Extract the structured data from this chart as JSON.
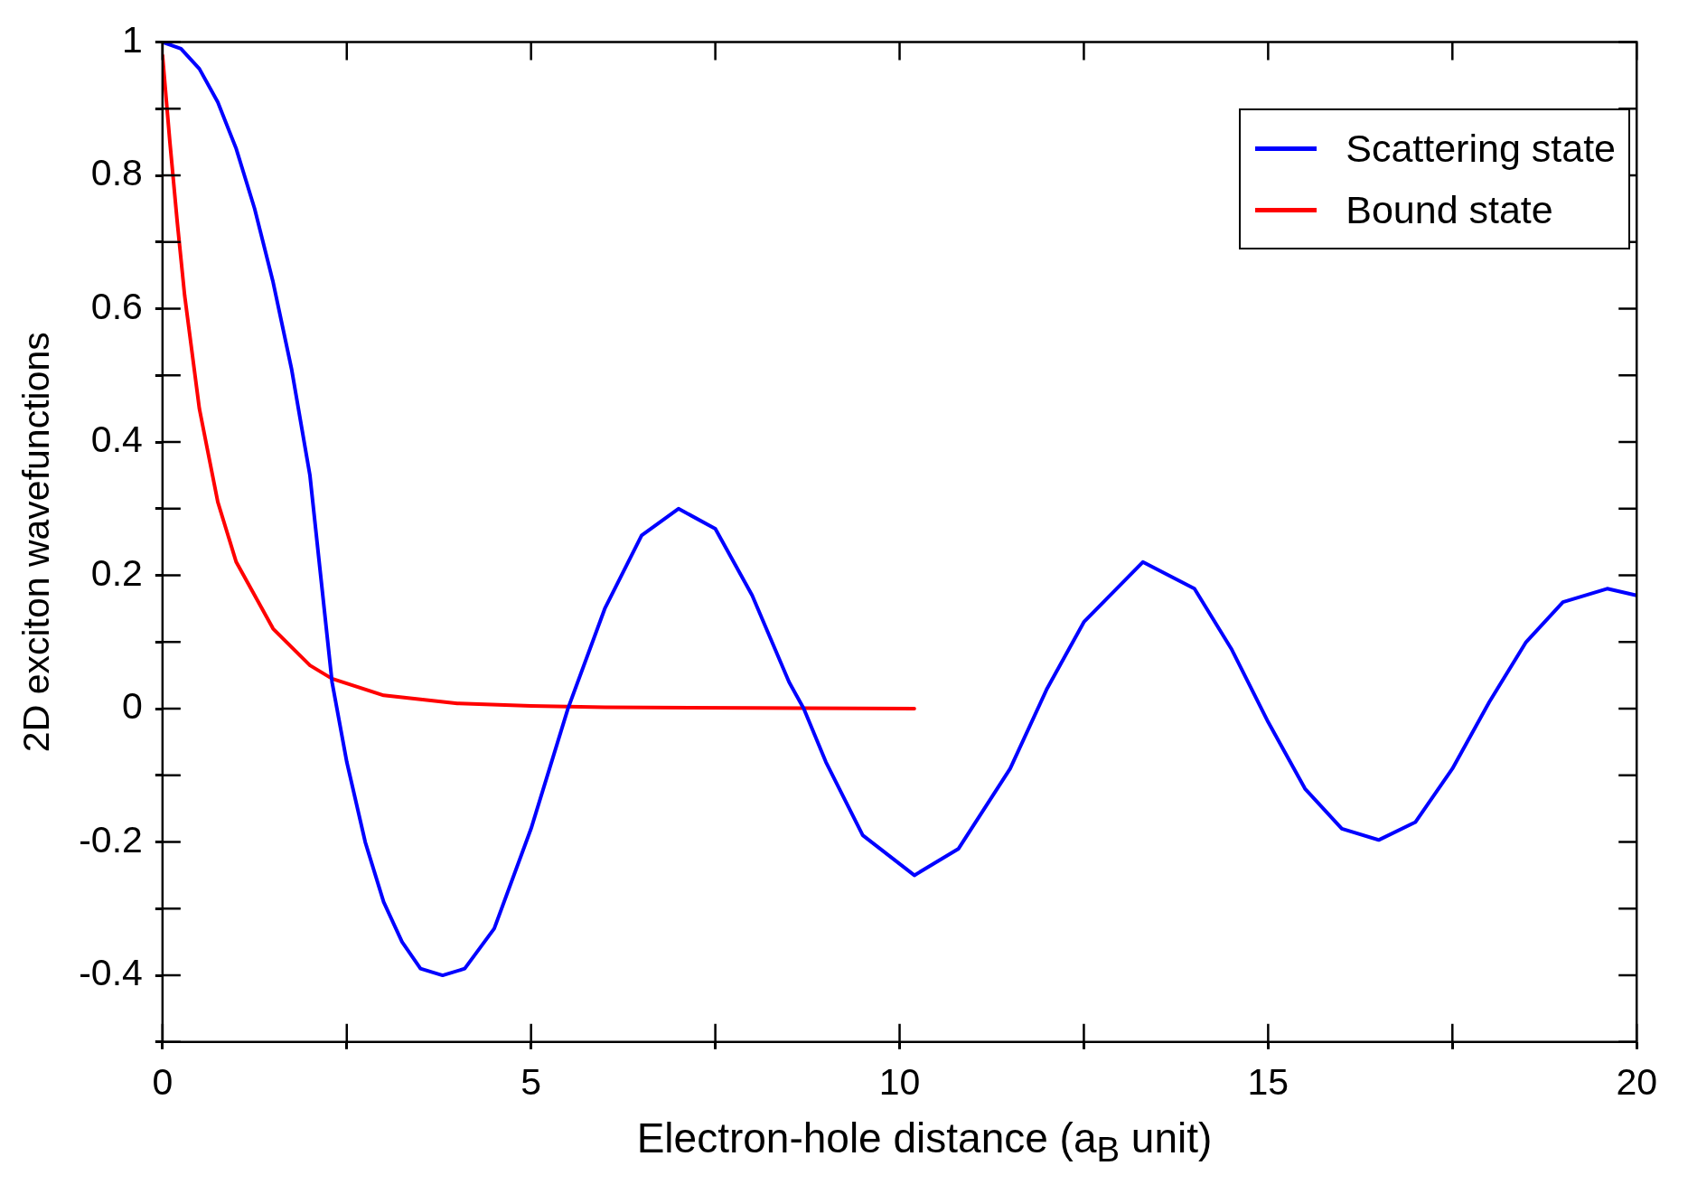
{
  "chart_data": {
    "type": "line",
    "xlabel": "Electron-hole distance (a$_{B}$ unit)",
    "ylabel": "2D exciton wavefunctions",
    "xlim": [
      0,
      20
    ],
    "ylim": [
      -0.5,
      1
    ],
    "xticks": [
      0,
      {
        "value": 2.5,
        "label": null
      },
      5,
      {
        "value": 7.5,
        "label": null
      },
      10,
      {
        "value": 12.5,
        "label": null
      },
      15,
      {
        "value": 17.5,
        "label": null
      },
      20
    ],
    "yticks": [
      {
        "value": -0.5,
        "label": null
      },
      -0.4,
      {
        "value": -0.3,
        "label": null
      },
      -0.2,
      {
        "value": -0.1,
        "label": null
      },
      0,
      {
        "value": 0.1,
        "label": null
      },
      0.2,
      {
        "value": 0.3,
        "label": null
      },
      0.4,
      {
        "value": 0.5,
        "label": null
      },
      0.6,
      {
        "value": 0.7,
        "label": null
      },
      0.8,
      {
        "value": 0.9,
        "label": null
      },
      1
    ],
    "grid": false,
    "legend": "top right",
    "marker": "none",
    "line_style": "solid",
    "series": [
      {
        "name": "Scattering state",
        "color": "#0000ff",
        "x": [
          0,
          0.25,
          0.5,
          0.75,
          1,
          1.25,
          1.5,
          1.75,
          2,
          2.3,
          2.5,
          2.75,
          3,
          3.25,
          3.5,
          3.8,
          4.1,
          4.5,
          5,
          5.5,
          6,
          6.5,
          7,
          7.5,
          8,
          8.5,
          8.7,
          9,
          9.5,
          10.2,
          10.8,
          11.5,
          12,
          12.5,
          13.3,
          14,
          14.5,
          15,
          15.5,
          16,
          16.5,
          17,
          17.5,
          18,
          18.5,
          19,
          19.6,
          20
        ],
        "values": [
          1,
          0.99,
          0.96,
          0.91,
          0.84,
          0.75,
          0.64,
          0.51,
          0.35,
          0.04,
          -0.08,
          -0.2,
          -0.29,
          -0.35,
          -0.39,
          -0.4,
          -0.39,
          -0.33,
          -0.18,
          0,
          0.15,
          0.26,
          0.3,
          0.27,
          0.17,
          0.04,
          0,
          -0.08,
          -0.19,
          -0.25,
          -0.21,
          -0.09,
          0.03,
          0.13,
          0.22,
          0.18,
          0.09,
          -0.02,
          -0.12,
          -0.18,
          -0.197,
          -0.17,
          -0.09,
          0.01,
          0.1,
          0.16,
          0.18,
          0.17
        ]
      },
      {
        "name": "Bound state",
        "color": "#ff0000",
        "x": [
          0,
          0.1,
          0.2,
          0.3,
          0.5,
          0.75,
          1,
          1.5,
          2,
          2.3,
          3,
          4,
          5,
          6,
          8,
          10.2
        ],
        "values": [
          0.98,
          0.85,
          0.73,
          0.62,
          0.45,
          0.31,
          0.22,
          0.12,
          0.065,
          0.045,
          0.02,
          0.008,
          0.004,
          0.002,
          0.001,
          0
        ]
      }
    ]
  }
}
